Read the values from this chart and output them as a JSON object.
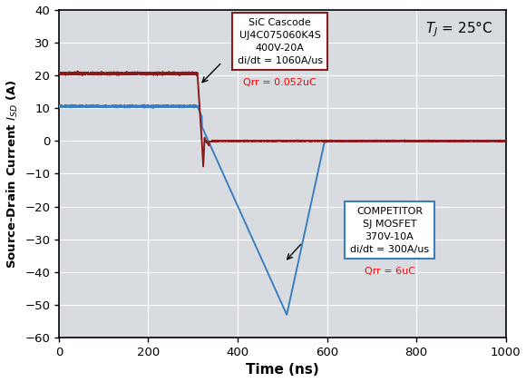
{
  "xlabel": "Time (ns)",
  "ylabel": "Source-Drain Current $I_{SD}$ (A)",
  "xlim": [
    0,
    1000
  ],
  "ylim": [
    -60,
    40
  ],
  "xticks": [
    0,
    200,
    400,
    600,
    800,
    1000
  ],
  "yticks": [
    -60,
    -50,
    -40,
    -30,
    -20,
    -10,
    0,
    10,
    20,
    30,
    40
  ],
  "sic_color": "#8B1A1A",
  "comp_color": "#3B7EC0",
  "background_color": "#D8DCE0",
  "grid_color": "#FFFFFF",
  "sic_box_edgecolor": "#8B1A1A",
  "comp_box_edgecolor": "#3B7EC0",
  "title_text": "T",
  "tj_text": " = 25°C"
}
